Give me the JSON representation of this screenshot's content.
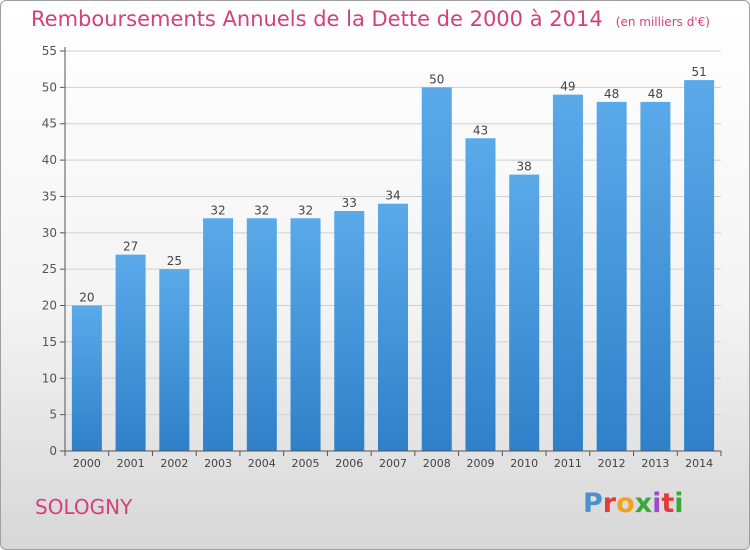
{
  "title": "Remboursements Annuels de la Dette de 2000 à 2014",
  "subtitle": "(en milliers d'€)",
  "town": "SOLOGNY",
  "logo": "Proxiti",
  "colors": {
    "title": "#d4407a",
    "bar_top": "#5aaaea",
    "bar_bottom": "#2f80c8",
    "axis": "#555555",
    "grid": "#d0d0d0"
  },
  "chart_data": {
    "type": "bar",
    "title": "Remboursements Annuels de la Dette de 2000 à 2014",
    "subtitle": "(en milliers d'€)",
    "xlabel": "",
    "ylabel": "",
    "categories": [
      "2000",
      "2001",
      "2002",
      "2003",
      "2004",
      "2005",
      "2006",
      "2007",
      "2008",
      "2009",
      "2010",
      "2011",
      "2012",
      "2013",
      "2014"
    ],
    "values": [
      20,
      27,
      25,
      32,
      32,
      32,
      33,
      34,
      50,
      43,
      38,
      49,
      48,
      48,
      51
    ],
    "ylim": [
      0,
      55
    ],
    "yticks": [
      0,
      5,
      10,
      15,
      20,
      25,
      30,
      35,
      40,
      45,
      50,
      55
    ],
    "grid": true,
    "legend": "none"
  }
}
